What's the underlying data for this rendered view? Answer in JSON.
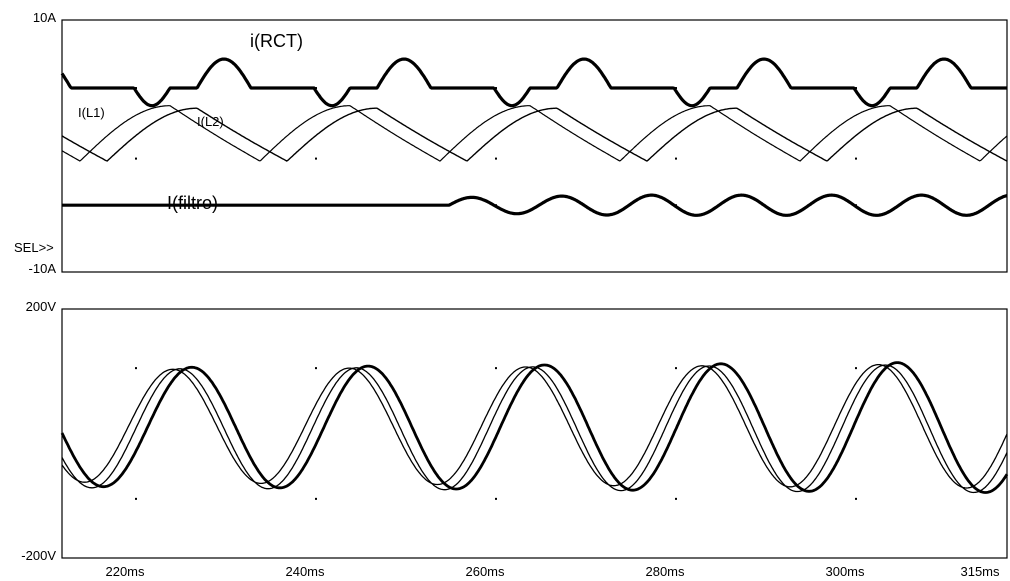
{
  "chart_data": [
    {
      "type": "line",
      "yunit_labels": {
        "top": "10A",
        "bottom": "-10A"
      },
      "ylim": [
        -10,
        10
      ],
      "xlim": [
        213,
        318
      ],
      "xunit": "ms",
      "grid": "dotted",
      "cursor_label": "SEL>>",
      "series": [
        {
          "name": "i(RCT)",
          "period_ms": 20,
          "waveform": "piecewise-smooth",
          "style": "thick",
          "x": [
            213,
            219,
            222,
            226,
            230,
            234,
            238,
            241,
            244,
            248,
            250
          ],
          "y": [
            4.6,
            4.6,
            3.2,
            4.6,
            6.9,
            4.6,
            4.6,
            4.6,
            3.2,
            4.6,
            6.9
          ]
        },
        {
          "name": "I(L1)",
          "period_ms": 20,
          "waveform": "sawtooth-sine",
          "style": "thin",
          "x": [
            213,
            216,
            219,
            223,
            227,
            231,
            235,
            239,
            242,
            246
          ],
          "y": [
            -1.0,
            -0.5,
            1.8,
            2.8,
            3.2,
            2.6,
            0.9,
            -0.9,
            -1.0,
            2.0
          ]
        },
        {
          "name": "I(L2)",
          "period_ms": 20,
          "waveform": "sawtooth-sine",
          "style": "thin-dotted",
          "x": [
            213,
            217,
            221,
            225,
            229,
            233,
            237,
            241,
            245
          ],
          "y": [
            -1.4,
            -1.3,
            1.2,
            2.7,
            3.0,
            2.2,
            0.3,
            -1.2,
            -1.3
          ]
        },
        {
          "name": "I(filtro)",
          "style": "thick",
          "x": [
            213,
            230,
            255,
            258,
            262,
            266,
            270,
            274,
            278,
            282,
            286,
            290,
            294,
            298,
            302,
            306,
            310,
            318
          ],
          "y": [
            -4.7,
            -4.7,
            -4.7,
            -5.0,
            -4.3,
            -5.2,
            -4.1,
            -5.4,
            -4.0,
            -5.3,
            -4.2,
            -5.3,
            -4.2,
            -5.3,
            -4.2,
            -5.3,
            -4.2,
            -4.6
          ]
        }
      ]
    },
    {
      "type": "line",
      "yunit_labels": {
        "top": "200V",
        "bottom": "-200V"
      },
      "ylim": [
        -200,
        200
      ],
      "xlim": [
        213,
        318
      ],
      "xunit": "ms",
      "grid": "dotted",
      "series": [
        {
          "name": "",
          "waveform": "sine",
          "amplitude_growth": [
            95,
            105
          ],
          "offset": 10,
          "period_ms": 19.6,
          "phase_ms": 222.5
        },
        {
          "name": "",
          "waveform": "sine",
          "amplitude_growth": [
            95,
            103
          ],
          "offset": 8,
          "period_ms": 19.6,
          "phase_ms": 221.2
        },
        {
          "name": "",
          "waveform": "sine",
          "amplitude_growth": [
            90,
            100
          ],
          "offset": 12,
          "period_ms": 19.6,
          "phase_ms": 220.4
        }
      ]
    }
  ],
  "x_ticks": [
    "220ms",
    "240ms",
    "260ms",
    "280ms",
    "300ms",
    "315ms"
  ],
  "x_tick_values": [
    220,
    240,
    260,
    280,
    300,
    315
  ]
}
